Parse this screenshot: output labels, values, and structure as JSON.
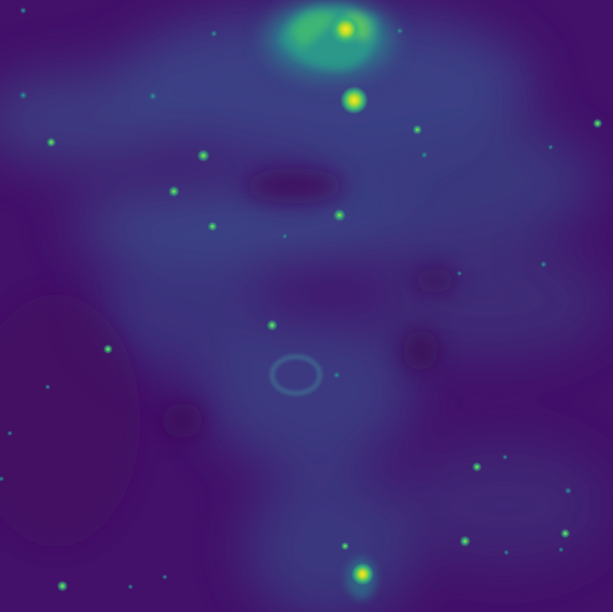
{
  "image": {
    "colormap": "viridis",
    "colors": {
      "background": "#43106a",
      "haze": "#39568c",
      "mid": "#21908d",
      "bright": "#5dc863",
      "peak": "#fde725"
    }
  }
}
